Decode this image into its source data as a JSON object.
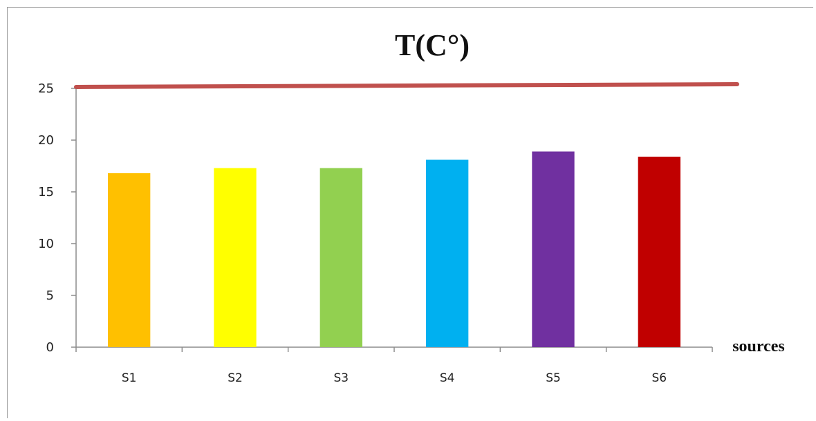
{
  "chart_data": {
    "type": "bar",
    "title": "T(C°)",
    "xlabel": "sources",
    "ylabel": "",
    "ylim": [
      0,
      25
    ],
    "yticks": [
      0,
      5,
      10,
      15,
      20,
      25
    ],
    "categories": [
      "S1",
      "S2",
      "S3",
      "S4",
      "S5",
      "S6"
    ],
    "values": [
      16.8,
      17.3,
      17.3,
      18.1,
      18.9,
      18.4
    ],
    "bar_colors": [
      "#FFC000",
      "#FFFF00",
      "#92D050",
      "#00B0F0",
      "#7030A0",
      "#C00000"
    ],
    "reference_line": {
      "value": 25.2,
      "color": "#C0504D"
    },
    "grid": false,
    "legend": "none"
  }
}
